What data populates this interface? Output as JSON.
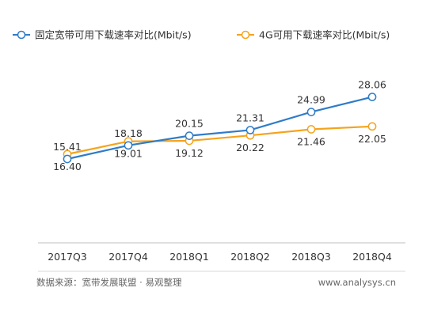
{
  "chart_data": {
    "type": "line",
    "categories": [
      "2017Q3",
      "2017Q4",
      "2018Q1",
      "2018Q2",
      "2018Q3",
      "2018Q4"
    ],
    "series": [
      {
        "name": "固定宽带可用下载速率对比(Mbit/s)",
        "color": "#2E7CC8",
        "values": [
          15.41,
          18.18,
          20.15,
          21.31,
          24.99,
          28.06
        ],
        "labels": [
          "15.41",
          "18.18",
          "20.15",
          "21.31",
          "24.99",
          "28.06"
        ]
      },
      {
        "name": "4G可用下载速率对比(Mbit/s)",
        "color": "#F5A31B",
        "values": [
          16.4,
          19.01,
          19.12,
          20.22,
          21.46,
          22.05
        ],
        "labels": [
          "16.40",
          "19.01",
          "19.12",
          "20.22",
          "21.46",
          "22.05"
        ]
      }
    ],
    "legend_position": "top",
    "grid": false
  },
  "footer": {
    "source": "数据来源：宽带发展联盟 · 易观整理",
    "website": "www.analysys.cn"
  }
}
